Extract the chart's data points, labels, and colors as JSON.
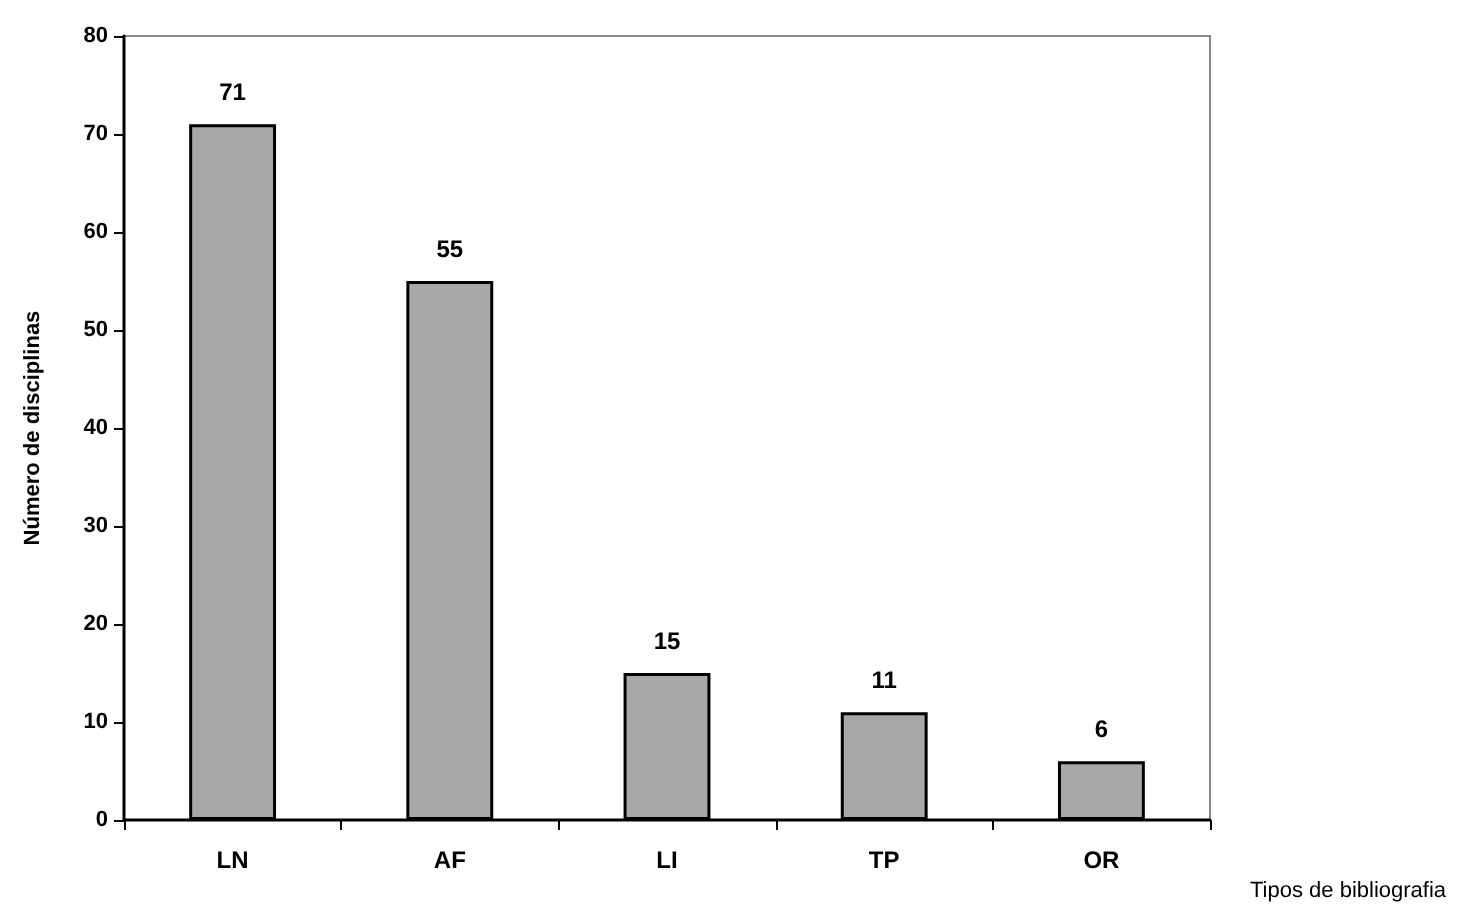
{
  "chart_data": {
    "type": "bar",
    "xlabel": "Tipos de bibliografia",
    "ylabel": "Número de disciplinas",
    "categories": [
      "LN",
      "AF",
      "LI",
      "TP",
      "OR"
    ],
    "values": [
      71,
      55,
      15,
      11,
      6
    ],
    "color": "#a8a8a8",
    "ylim": [
      0,
      80
    ],
    "yticks": [
      0,
      10,
      20,
      30,
      40,
      50,
      60,
      70,
      80
    ],
    "data_labels": true
  }
}
